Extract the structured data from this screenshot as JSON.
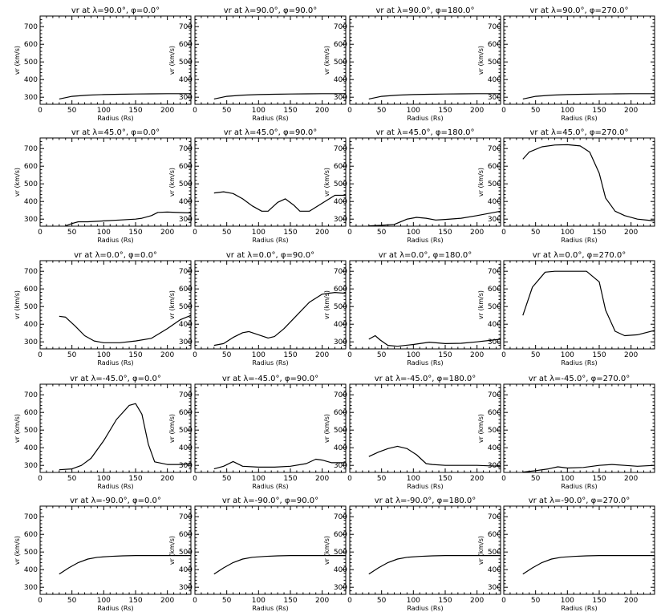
{
  "chart_data": [
    {
      "type": "line",
      "title": "vr at λ=90.0°, φ=0.0°",
      "xlabel": "Radius (Rs)",
      "ylabel": "vr (km/s)",
      "xlim": [
        0,
        237
      ],
      "ylim": [
        260,
        760
      ],
      "x": [
        30,
        50,
        75,
        100,
        125,
        150,
        175,
        200,
        237
      ],
      "y": [
        290,
        305,
        312,
        315,
        317,
        318,
        319,
        320,
        320
      ]
    },
    {
      "type": "line",
      "title": "vr at λ=90.0°, φ=90.0°",
      "xlabel": "Radius (Rs)",
      "ylabel": "vr (km/s)",
      "xlim": [
        0,
        237
      ],
      "ylim": [
        260,
        760
      ],
      "x": [
        30,
        50,
        75,
        100,
        125,
        150,
        175,
        200,
        237
      ],
      "y": [
        290,
        305,
        312,
        315,
        317,
        318,
        319,
        320,
        320
      ]
    },
    {
      "type": "line",
      "title": "vr at λ=90.0°, φ=180.0°",
      "xlabel": "Radius (Rs)",
      "ylabel": "vr (km/s)",
      "xlim": [
        0,
        237
      ],
      "ylim": [
        260,
        760
      ],
      "x": [
        30,
        50,
        75,
        100,
        125,
        150,
        175,
        200,
        237
      ],
      "y": [
        290,
        305,
        312,
        315,
        317,
        318,
        319,
        320,
        320
      ]
    },
    {
      "type": "line",
      "title": "vr at λ=90.0°, φ=270.0°",
      "xlabel": "Radius (Rs)",
      "ylabel": "vr (km/s)",
      "xlim": [
        0,
        237
      ],
      "ylim": [
        260,
        760
      ],
      "x": [
        30,
        50,
        75,
        100,
        125,
        150,
        175,
        200,
        237
      ],
      "y": [
        290,
        305,
        312,
        315,
        317,
        318,
        319,
        320,
        320
      ]
    },
    {
      "type": "line",
      "title": "vr at λ=45.0°, φ=0.0°",
      "xlabel": "Radius (Rs)",
      "ylabel": "vr (km/s)",
      "xlim": [
        0,
        237
      ],
      "ylim": [
        260,
        760
      ],
      "x": [
        40,
        50,
        60,
        75,
        100,
        125,
        150,
        160,
        175,
        185,
        200,
        237
      ],
      "y": [
        262,
        275,
        285,
        285,
        290,
        295,
        300,
        305,
        320,
        338,
        340,
        335
      ]
    },
    {
      "type": "line",
      "title": "vr at λ=45.0°, φ=90.0°",
      "xlabel": "Radius (Rs)",
      "ylabel": "vr (km/s)",
      "xlim": [
        0,
        237
      ],
      "ylim": [
        260,
        760
      ],
      "x": [
        30,
        45,
        60,
        75,
        90,
        105,
        115,
        130,
        142,
        155,
        165,
        180,
        200,
        220,
        237
      ],
      "y": [
        448,
        455,
        445,
        415,
        375,
        345,
        345,
        395,
        415,
        380,
        345,
        345,
        390,
        435,
        435
      ]
    },
    {
      "type": "line",
      "title": "vr at λ=45.0°, φ=180.0°",
      "xlabel": "Radius (Rs)",
      "ylabel": "vr (km/s)",
      "xlim": [
        0,
        237
      ],
      "ylim": [
        260,
        760
      ],
      "x": [
        30,
        50,
        70,
        90,
        105,
        120,
        135,
        150,
        175,
        200,
        237
      ],
      "y": [
        262,
        265,
        270,
        300,
        310,
        305,
        295,
        298,
        305,
        320,
        345
      ]
    },
    {
      "type": "line",
      "title": "vr at λ=45.0°, φ=270.0°",
      "xlabel": "Radius (Rs)",
      "ylabel": "vr (km/s)",
      "xlim": [
        0,
        237
      ],
      "ylim": [
        260,
        760
      ],
      "x": [
        30,
        40,
        60,
        80,
        100,
        120,
        135,
        150,
        160,
        175,
        190,
        210,
        237
      ],
      "y": [
        640,
        680,
        710,
        720,
        722,
        715,
        680,
        560,
        420,
        345,
        320,
        300,
        290
      ]
    },
    {
      "type": "line",
      "title": "vr at λ=0.0°, φ=0.0°",
      "xlabel": "Radius (Rs)",
      "ylabel": "vr (km/s)",
      "xlim": [
        0,
        237
      ],
      "ylim": [
        260,
        760
      ],
      "x": [
        30,
        40,
        55,
        70,
        85,
        100,
        125,
        150,
        175,
        200,
        220,
        237
      ],
      "y": [
        445,
        440,
        390,
        335,
        305,
        295,
        295,
        305,
        320,
        375,
        425,
        450
      ]
    },
    {
      "type": "line",
      "title": "vr at λ=0.0°, φ=90.0°",
      "xlabel": "Radius (Rs)",
      "ylabel": "vr (km/s)",
      "xlim": [
        0,
        237
      ],
      "ylim": [
        260,
        760
      ],
      "x": [
        30,
        45,
        60,
        75,
        85,
        100,
        115,
        125,
        140,
        160,
        180,
        200,
        220,
        237
      ],
      "y": [
        280,
        290,
        325,
        352,
        358,
        340,
        322,
        330,
        375,
        450,
        525,
        570,
        580,
        575
      ]
    },
    {
      "type": "line",
      "title": "vr at λ=0.0°, φ=180.0°",
      "xlabel": "Radius (Rs)",
      "ylabel": "vr (km/s)",
      "xlim": [
        0,
        237
      ],
      "ylim": [
        260,
        760
      ],
      "x": [
        30,
        40,
        48,
        60,
        75,
        100,
        125,
        150,
        175,
        200,
        237
      ],
      "y": [
        315,
        335,
        310,
        280,
        275,
        285,
        298,
        290,
        292,
        300,
        315
      ]
    },
    {
      "type": "line",
      "title": "vr at λ=0.0°, φ=270.0°",
      "xlabel": "Radius (Rs)",
      "ylabel": "vr (km/s)",
      "xlim": [
        0,
        237
      ],
      "ylim": [
        260,
        760
      ],
      "x": [
        30,
        45,
        65,
        80,
        100,
        130,
        150,
        160,
        175,
        190,
        210,
        237
      ],
      "y": [
        450,
        610,
        695,
        700,
        700,
        700,
        640,
        480,
        360,
        335,
        340,
        365
      ]
    },
    {
      "type": "line",
      "title": "vr at λ=-45.0°, φ=0.0°",
      "xlabel": "Radius (Rs)",
      "ylabel": "vr (km/s)",
      "xlim": [
        0,
        237
      ],
      "ylim": [
        260,
        760
      ],
      "x": [
        30,
        50,
        65,
        80,
        100,
        120,
        140,
        150,
        160,
        170,
        180,
        200,
        220,
        237
      ],
      "y": [
        275,
        280,
        300,
        340,
        440,
        560,
        640,
        650,
        590,
        420,
        320,
        305,
        305,
        310
      ]
    },
    {
      "type": "line",
      "title": "vr at λ=-45.0°, φ=90.0°",
      "xlabel": "Radius (Rs)",
      "ylabel": "vr (km/s)",
      "xlim": [
        0,
        237
      ],
      "ylim": [
        260,
        760
      ],
      "x": [
        30,
        45,
        60,
        75,
        100,
        125,
        150,
        175,
        190,
        200,
        215,
        237
      ],
      "y": [
        280,
        295,
        322,
        295,
        290,
        290,
        295,
        310,
        335,
        330,
        315,
        315
      ]
    },
    {
      "type": "line",
      "title": "vr at λ=-45.0°, φ=180.0°",
      "xlabel": "Radius (Rs)",
      "ylabel": "vr (km/s)",
      "xlim": [
        0,
        237
      ],
      "ylim": [
        260,
        760
      ],
      "x": [
        30,
        45,
        60,
        75,
        90,
        105,
        120,
        130,
        150,
        175,
        200,
        237
      ],
      "y": [
        350,
        375,
        395,
        408,
        395,
        360,
        310,
        305,
        300,
        300,
        300,
        295
      ]
    },
    {
      "type": "line",
      "title": "vr at λ=-45.0°, φ=270.0°",
      "xlabel": "Radius (Rs)",
      "ylabel": "vr (km/s)",
      "xlim": [
        0,
        237
      ],
      "ylim": [
        260,
        760
      ],
      "x": [
        30,
        50,
        70,
        85,
        100,
        125,
        150,
        170,
        190,
        210,
        237
      ],
      "y": [
        262,
        270,
        280,
        292,
        285,
        288,
        300,
        305,
        300,
        295,
        300
      ]
    },
    {
      "type": "line",
      "title": "vr at λ=-90.0°, φ=0.0°",
      "xlabel": "Radius (Rs)",
      "ylabel": "vr (km/s)",
      "xlim": [
        0,
        237
      ],
      "ylim": [
        260,
        760
      ],
      "x": [
        30,
        45,
        60,
        75,
        90,
        110,
        130,
        150,
        175,
        200,
        237
      ],
      "y": [
        375,
        410,
        440,
        460,
        470,
        475,
        478,
        480,
        480,
        480,
        480
      ]
    },
    {
      "type": "line",
      "title": "vr at λ=-90.0°, φ=90.0°",
      "xlabel": "Radius (Rs)",
      "ylabel": "vr (km/s)",
      "xlim": [
        0,
        237
      ],
      "ylim": [
        260,
        760
      ],
      "x": [
        30,
        45,
        60,
        75,
        90,
        110,
        130,
        150,
        175,
        200,
        237
      ],
      "y": [
        375,
        410,
        440,
        460,
        470,
        475,
        478,
        480,
        480,
        480,
        480
      ]
    },
    {
      "type": "line",
      "title": "vr at λ=-90.0°, φ=180.0°",
      "xlabel": "Radius (Rs)",
      "ylabel": "vr (km/s)",
      "xlim": [
        0,
        237
      ],
      "ylim": [
        260,
        760
      ],
      "x": [
        30,
        45,
        60,
        75,
        90,
        110,
        130,
        150,
        175,
        200,
        237
      ],
      "y": [
        375,
        410,
        440,
        460,
        470,
        475,
        478,
        480,
        480,
        480,
        480
      ]
    },
    {
      "type": "line",
      "title": "vr at λ=-90.0°, φ=270.0°",
      "xlabel": "Radius (Rs)",
      "ylabel": "vr (km/s)",
      "xlim": [
        0,
        237
      ],
      "ylim": [
        260,
        760
      ],
      "x": [
        30,
        45,
        60,
        75,
        90,
        110,
        130,
        150,
        175,
        200,
        237
      ],
      "y": [
        375,
        410,
        440,
        460,
        470,
        475,
        478,
        480,
        480,
        480,
        480
      ]
    }
  ],
  "axes": {
    "x_ticks": [
      "0",
      "50",
      "100",
      "150",
      "200"
    ],
    "y_ticks": [
      "300",
      "400",
      "500",
      "600",
      "700"
    ]
  }
}
